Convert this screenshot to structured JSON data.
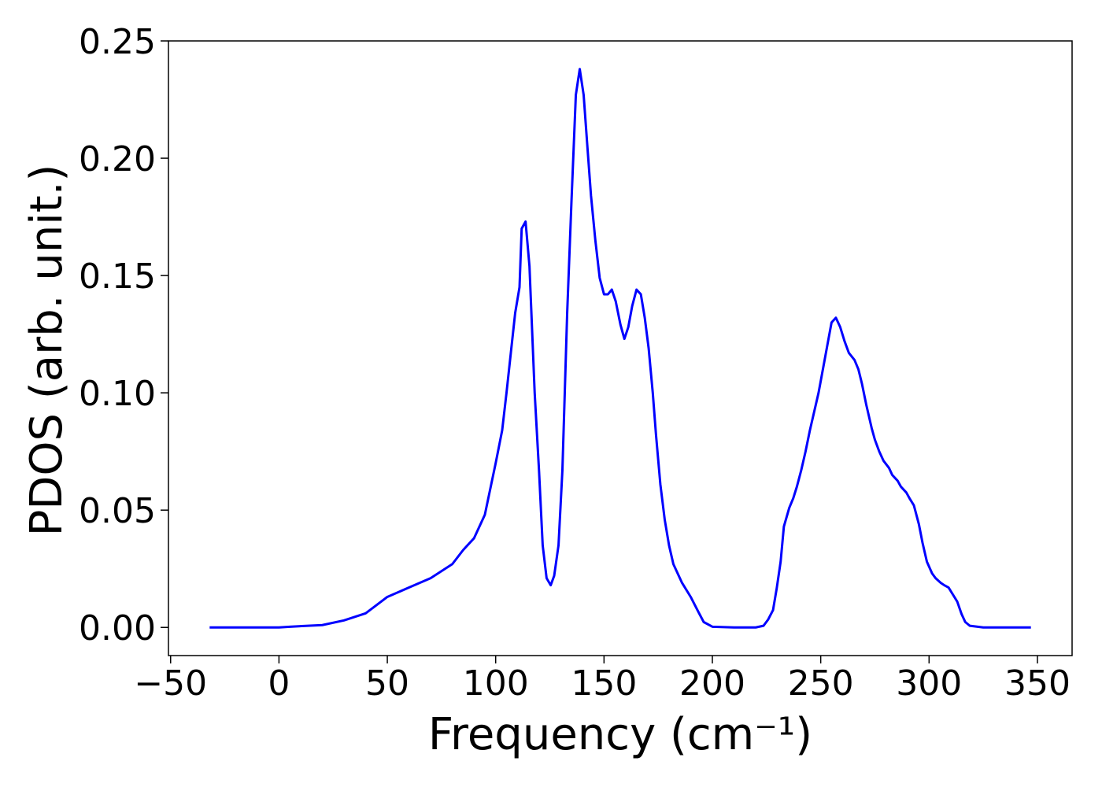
{
  "chart_data": {
    "type": "line",
    "xlabel": "Frequency (cm⁻¹)",
    "ylabel": "PDOS (arb. unit.)",
    "xlim": [
      -51,
      366
    ],
    "ylim": [
      -0.012,
      0.25
    ],
    "xticks": [
      {
        "value": -50,
        "label": "−50"
      },
      0,
      50,
      100,
      150,
      200,
      250,
      300,
      350
    ],
    "yticks": [
      {
        "value": 0,
        "label": "0.00"
      },
      {
        "value": 0.05,
        "label": "0.05"
      },
      {
        "value": 0.1,
        "label": "0.10"
      },
      {
        "value": 0.15,
        "label": "0.15"
      },
      {
        "value": 0.2,
        "label": "0.20"
      },
      {
        "value": 0.25,
        "label": "0.25"
      }
    ],
    "series": [
      {
        "color": "#0000ff",
        "x": [
          -32,
          0,
          5,
          20,
          30,
          40,
          50,
          60,
          70,
          80,
          85,
          90,
          95,
          100,
          103,
          105,
          107,
          109,
          111,
          112,
          113.8,
          115.6,
          118,
          120,
          121.7,
          123.5,
          125.4,
          127,
          129,
          130.8,
          133,
          135,
          137,
          138.8,
          140.6,
          142.4,
          144,
          146,
          148,
          150,
          151.8,
          153.6,
          155.4,
          157.6,
          159.4,
          161.2,
          163,
          165,
          167,
          168.8,
          170.6,
          172.5,
          174,
          176,
          178,
          180,
          182,
          186,
          190,
          193.5,
          196,
          200,
          210,
          220,
          223.6,
          225.7,
          228,
          229.7,
          231.5,
          233,
          235.5,
          237.3,
          239,
          241,
          243,
          245,
          247,
          249,
          251,
          253,
          255,
          257,
          259,
          261,
          263,
          265.6,
          267.4,
          269,
          271,
          273.5,
          275,
          277,
          279,
          281.5,
          283,
          285.5,
          287,
          289.5,
          291,
          293,
          295.3,
          297,
          299,
          301.4,
          303,
          305.4,
          307,
          309,
          311,
          313,
          315,
          316.7,
          318.8,
          325,
          347
        ],
        "values": [
          0,
          0,
          0.0003,
          0.001,
          0.003,
          0.006,
          0.013,
          0.017,
          0.021,
          0.027,
          0.033,
          0.038,
          0.048,
          0.07,
          0.084,
          0.1,
          0.117,
          0.134,
          0.145,
          0.17,
          0.173,
          0.154,
          0.1,
          0.067,
          0.035,
          0.021,
          0.018,
          0.022,
          0.035,
          0.067,
          0.134,
          0.182,
          0.227,
          0.238,
          0.227,
          0.204,
          0.184,
          0.165,
          0.149,
          0.142,
          0.142,
          0.144,
          0.139,
          0.129,
          0.123,
          0.128,
          0.137,
          0.144,
          0.142,
          0.132,
          0.119,
          0.1,
          0.082,
          0.061,
          0.046,
          0.035,
          0.027,
          0.019,
          0.013,
          0.0067,
          0.0023,
          0.0003,
          0,
          0,
          0.0007,
          0.0033,
          0.0074,
          0.0167,
          0.028,
          0.043,
          0.051,
          0.055,
          0.06,
          0.067,
          0.075,
          0.084,
          0.092,
          0.1,
          0.11,
          0.12,
          0.13,
          0.132,
          0.128,
          0.122,
          0.117,
          0.114,
          0.11,
          0.104,
          0.095,
          0.085,
          0.08,
          0.075,
          0.071,
          0.068,
          0.065,
          0.0625,
          0.06,
          0.0575,
          0.055,
          0.052,
          0.044,
          0.036,
          0.028,
          0.023,
          0.021,
          0.019,
          0.018,
          0.017,
          0.014,
          0.011,
          0.0057,
          0.0023,
          0.0007,
          0,
          0
        ]
      }
    ]
  }
}
